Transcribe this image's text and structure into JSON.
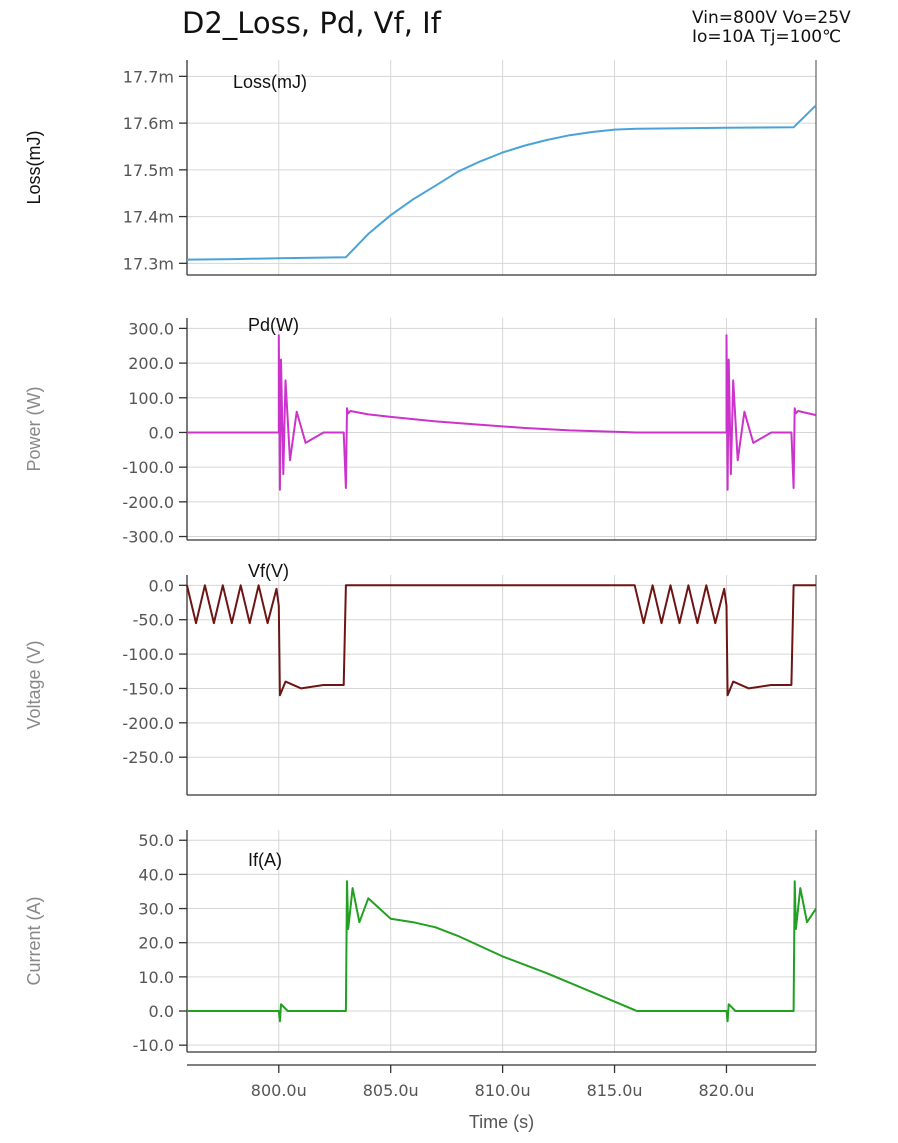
{
  "title": "D2_Loss, Pd, Vf, If",
  "conditions": [
    "Vin=800V Vo=25V",
    "Io=10A Tj=100℃"
  ],
  "x_axis": {
    "label": "Time (s)",
    "range_us": [
      795.9,
      824.0
    ],
    "ticks": [
      800,
      805,
      810,
      815,
      820
    ],
    "tick_labels": [
      "800.0u",
      "805.0u",
      "810.0u",
      "815.0u",
      "820.0u"
    ]
  },
  "chart_data": [
    {
      "type": "line",
      "ylabel": "Loss(mJ)",
      "annotation": "Loss(mJ)",
      "color": "#4aa3d8",
      "ylim": [
        17.275,
        17.735
      ],
      "yticks": [
        17.3,
        17.4,
        17.5,
        17.6,
        17.7
      ],
      "ytick_labels": [
        "17.3m",
        "17.4m",
        "17.5m",
        "17.6m",
        "17.7m"
      ],
      "series": [
        {
          "x": [
            795.9,
            798.0,
            800.0,
            803.0,
            804.0,
            805.0,
            806.0,
            807.0,
            808.0,
            809.0,
            810.0,
            811.0,
            812.0,
            813.0,
            814.0,
            815.0,
            816.0,
            820.0,
            823.0,
            824.0
          ],
          "values": [
            17.308,
            17.309,
            17.311,
            17.313,
            17.363,
            17.403,
            17.437,
            17.466,
            17.496,
            17.518,
            17.537,
            17.552,
            17.564,
            17.574,
            17.581,
            17.586,
            17.588,
            17.59,
            17.591,
            17.638
          ]
        }
      ]
    },
    {
      "type": "line",
      "ylabel": "Power (W)",
      "annotation": "Pd(W)",
      "color": "#cc33cc",
      "ylim": [
        -310,
        330
      ],
      "yticks": [
        300,
        200,
        100,
        0,
        -100,
        -200,
        -300
      ],
      "ytick_labels": [
        "300.0",
        "200.0",
        "100.0",
        "0.0",
        "-100.0",
        "-200.0",
        "-300.0"
      ],
      "series": [
        {
          "x": [
            795.9,
            800.0,
            800.0,
            800.05,
            800.1,
            800.2,
            800.3,
            800.5,
            800.8,
            801.2,
            802.0,
            802.9,
            803.0,
            803.05,
            803.1,
            803.2,
            804.0,
            805.0,
            807.0,
            809.0,
            811.0,
            813.0,
            815.0,
            816.0,
            820.0,
            820.0,
            820.05,
            820.1,
            820.2,
            820.3,
            820.5,
            820.8,
            821.2,
            822.0,
            822.9,
            823.0,
            823.05,
            823.1,
            823.2,
            824.0
          ],
          "values": [
            0,
            0,
            280,
            -165,
            210,
            -120,
            150,
            -80,
            60,
            -30,
            0,
            0,
            -160,
            70,
            55,
            62,
            52,
            45,
            32,
            22,
            13,
            6,
            2,
            0,
            0,
            280,
            -165,
            210,
            -120,
            150,
            -80,
            60,
            -30,
            0,
            0,
            -160,
            70,
            55,
            62,
            50
          ]
        }
      ]
    },
    {
      "type": "line",
      "ylabel": "Voltage (V)",
      "annotation": "Vf(V)",
      "color": "#6e1414",
      "ylim": [
        -305,
        15
      ],
      "yticks": [
        0,
        -50,
        -100,
        -150,
        -200,
        -250
      ],
      "ytick_labels": [
        "0.0",
        "-50.0",
        "-100.0",
        "-150.0",
        "-200.0",
        "-250.0"
      ],
      "series": [
        {
          "x": [
            795.9,
            796.3,
            796.7,
            797.1,
            797.5,
            797.9,
            798.3,
            798.7,
            799.1,
            799.5,
            799.9,
            800.0,
            800.05,
            800.3,
            801.0,
            802.0,
            802.9,
            803.0,
            804.0,
            810.0,
            815.0,
            815.9,
            816.3,
            816.7,
            817.1,
            817.5,
            817.9,
            818.3,
            818.7,
            819.1,
            819.5,
            819.9,
            820.0,
            820.05,
            820.3,
            821.0,
            822.0,
            822.9,
            823.0,
            824.0
          ],
          "values": [
            0,
            -55,
            0,
            -55,
            0,
            -55,
            0,
            -55,
            0,
            -55,
            -5,
            -30,
            -160,
            -140,
            -150,
            -145,
            -145,
            0,
            0,
            0,
            0,
            0,
            -55,
            0,
            -55,
            0,
            -55,
            0,
            -55,
            0,
            -55,
            -5,
            -30,
            -160,
            -140,
            -150,
            -145,
            -145,
            0,
            0
          ]
        }
      ]
    },
    {
      "type": "line",
      "ylabel": "Current (A)",
      "annotation": "If(A)",
      "color": "#22a022",
      "ylim": [
        -12,
        53
      ],
      "yticks": [
        50,
        40,
        30,
        20,
        10,
        0,
        -10
      ],
      "ytick_labels": [
        "50.0",
        "40.0",
        "30.0",
        "20.0",
        "10.0",
        "0.0",
        "-10.0"
      ],
      "series": [
        {
          "x": [
            795.9,
            800.0,
            800.05,
            800.1,
            800.4,
            802.9,
            803.0,
            803.05,
            803.1,
            803.3,
            803.6,
            804.0,
            805.0,
            806.0,
            807.0,
            808.0,
            810.0,
            812.0,
            814.0,
            816.0,
            820.0,
            820.05,
            820.1,
            820.4,
            822.9,
            823.0,
            823.05,
            823.1,
            823.3,
            823.6,
            824.0
          ],
          "values": [
            0,
            0,
            -3,
            2,
            0,
            0,
            0,
            38,
            24,
            36,
            26,
            33,
            27,
            26,
            24.5,
            22,
            16,
            11,
            5.5,
            0,
            0,
            -3,
            2,
            0,
            0,
            0,
            38,
            24,
            36,
            26,
            30
          ]
        }
      ]
    }
  ]
}
